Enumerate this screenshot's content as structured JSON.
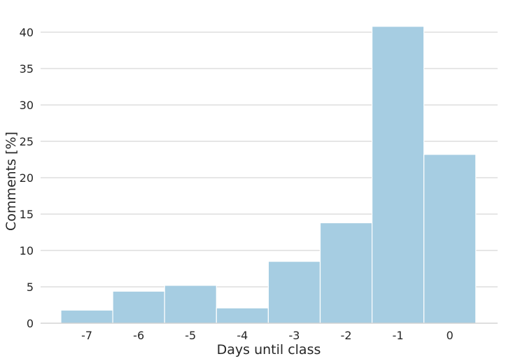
{
  "chart_data": {
    "type": "bar",
    "title": "",
    "xlabel": "Days until class",
    "ylabel": "Comments [%]",
    "categories": [
      "-7",
      "-6",
      "-5",
      "-4",
      "-3",
      "-2",
      "-1",
      "0"
    ],
    "values": [
      1.8,
      4.4,
      5.2,
      2.1,
      8.5,
      13.8,
      40.8,
      23.2
    ],
    "ylim": [
      0,
      42.5
    ],
    "yticks": [
      0,
      5,
      10,
      15,
      20,
      25,
      30,
      35,
      40
    ],
    "grid": "horizontal",
    "bar_color": "#a6cde2",
    "grid_color": "#cccccc"
  }
}
